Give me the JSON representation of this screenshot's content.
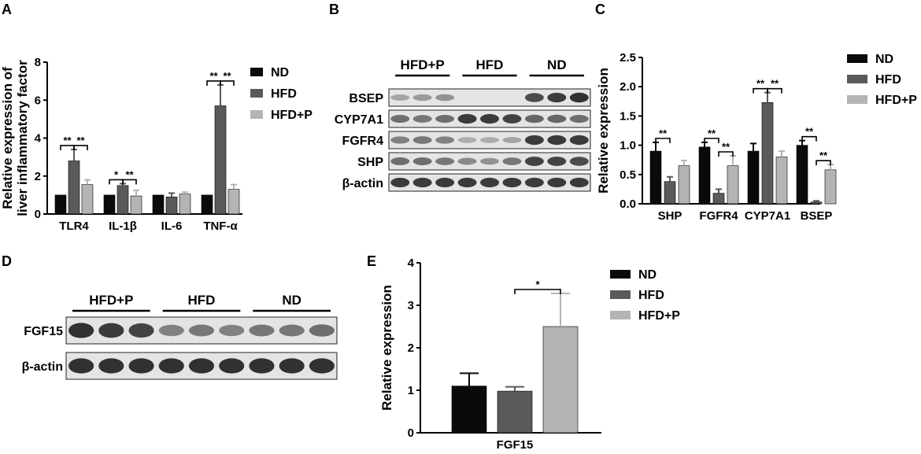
{
  "panel_labels": [
    "A",
    "B",
    "C",
    "D",
    "E"
  ],
  "colors": {
    "ND": "#0a0a0a",
    "HFD": "#5a5a5a",
    "HFD+P": "#b4b4b4"
  },
  "chart_data": [
    {
      "panel": "A",
      "type": "bar",
      "ylabel_lines": [
        "Relative expression of",
        "liver inflammatory factor"
      ],
      "categories": [
        "TLR4",
        "IL-1β",
        "IL-6",
        "TNF-α"
      ],
      "ylim": [
        0,
        8
      ],
      "yticks": [
        0,
        2,
        4,
        6,
        8
      ],
      "legend_position": "right",
      "series": [
        {
          "name": "ND",
          "values": [
            1.0,
            1.0,
            1.0,
            1.0
          ],
          "errors": [
            0,
            0,
            0,
            0
          ]
        },
        {
          "name": "HFD",
          "values": [
            2.8,
            1.5,
            0.9,
            5.7
          ],
          "errors": [
            0.6,
            0.1,
            0.2,
            1.1
          ]
        },
        {
          "name": "HFD+P",
          "values": [
            1.55,
            0.95,
            1.05,
            1.3
          ],
          "errors": [
            0.25,
            0.3,
            0.1,
            0.25
          ]
        }
      ],
      "significance": [
        {
          "category": 0,
          "from": 0,
          "to": 1,
          "label": "**"
        },
        {
          "category": 0,
          "from": 1,
          "to": 2,
          "label": "**"
        },
        {
          "category": 1,
          "from": 0,
          "to": 1,
          "label": "*"
        },
        {
          "category": 1,
          "from": 1,
          "to": 2,
          "label": "**"
        },
        {
          "category": 3,
          "from": 0,
          "to": 1,
          "label": "**"
        },
        {
          "category": 3,
          "from": 1,
          "to": 2,
          "label": "**"
        }
      ]
    },
    {
      "panel": "C",
      "type": "bar",
      "ylabel": "Relative expression",
      "categories": [
        "SHP",
        "FGFR4",
        "CYP7A1",
        "BSEP"
      ],
      "ylim": [
        0,
        2.5
      ],
      "yticks": [
        "0.0",
        "0.5",
        "1.0",
        "1.5",
        "2.0",
        "2.5"
      ],
      "legend_position": "right",
      "series": [
        {
          "name": "ND",
          "values": [
            0.9,
            0.97,
            0.9,
            1.0
          ],
          "errors": [
            0.15,
            0.08,
            0.13,
            0.08
          ]
        },
        {
          "name": "HFD",
          "values": [
            0.38,
            0.18,
            1.73,
            0.03
          ],
          "errors": [
            0.08,
            0.07,
            0.17,
            0.02
          ]
        },
        {
          "name": "HFD+P",
          "values": [
            0.65,
            0.65,
            0.8,
            0.58
          ],
          "errors": [
            0.09,
            0.17,
            0.1,
            0.09
          ]
        }
      ],
      "significance": [
        {
          "category": 0,
          "from": 0,
          "to": 1,
          "label": "**"
        },
        {
          "category": 1,
          "from": 0,
          "to": 1,
          "label": "**"
        },
        {
          "category": 1,
          "from": 1,
          "to": 2,
          "label": "**"
        },
        {
          "category": 2,
          "from": 0,
          "to": 1,
          "label": "**"
        },
        {
          "category": 2,
          "from": 1,
          "to": 2,
          "label": "**"
        },
        {
          "category": 3,
          "from": 0,
          "to": 1,
          "label": "**"
        },
        {
          "category": 3,
          "from": 1,
          "to": 2,
          "label": "**"
        }
      ]
    },
    {
      "panel": "E",
      "type": "bar",
      "ylabel": "Relative expression",
      "categories": [
        "FGF15"
      ],
      "ylim": [
        0,
        4
      ],
      "yticks": [
        0,
        1,
        2,
        3,
        4
      ],
      "legend_position": "right",
      "series": [
        {
          "name": "ND",
          "values": [
            1.1
          ],
          "errors": [
            0.3
          ]
        },
        {
          "name": "HFD",
          "values": [
            0.98
          ],
          "errors": [
            0.1
          ]
        },
        {
          "name": "HFD+P",
          "values": [
            2.5
          ],
          "errors": [
            0.78
          ]
        }
      ],
      "significance": [
        {
          "category": 0,
          "from": 1,
          "to": 2,
          "label": "*"
        }
      ]
    }
  ],
  "blots": [
    {
      "panel": "B",
      "groups": [
        "HFD+P",
        "HFD",
        "ND"
      ],
      "rows": [
        {
          "label": "BSEP",
          "intensities": [
            0.25,
            0.3,
            0.35,
            0.0,
            0.0,
            0.0,
            0.75,
            0.85,
            0.9
          ]
        },
        {
          "label": "CYP7A1",
          "intensities": [
            0.55,
            0.5,
            0.55,
            0.85,
            0.85,
            0.8,
            0.6,
            0.6,
            0.55
          ]
        },
        {
          "label": "FGFR4",
          "intensities": [
            0.45,
            0.5,
            0.45,
            0.2,
            0.2,
            0.25,
            0.85,
            0.85,
            0.85
          ]
        },
        {
          "label": "SHP",
          "intensities": [
            0.55,
            0.55,
            0.5,
            0.4,
            0.35,
            0.5,
            0.8,
            0.8,
            0.75
          ]
        },
        {
          "label": "β-actin",
          "intensities": [
            0.85,
            0.85,
            0.85,
            0.85,
            0.85,
            0.85,
            0.85,
            0.85,
            0.85
          ]
        }
      ]
    },
    {
      "panel": "D",
      "groups": [
        "HFD+P",
        "HFD",
        "ND"
      ],
      "rows": [
        {
          "label": "FGF15",
          "intensities": [
            0.9,
            0.85,
            0.8,
            0.45,
            0.5,
            0.45,
            0.5,
            0.5,
            0.55
          ]
        },
        {
          "label": "β-actin",
          "intensities": [
            0.9,
            0.9,
            0.9,
            0.9,
            0.9,
            0.9,
            0.9,
            0.9,
            0.9
          ]
        }
      ]
    }
  ]
}
